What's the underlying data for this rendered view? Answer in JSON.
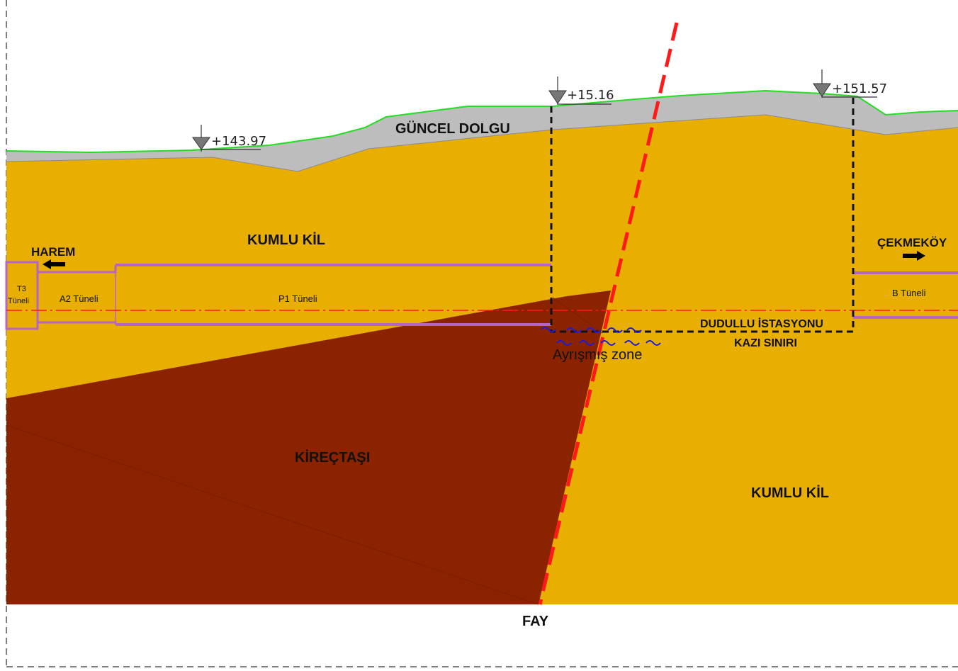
{
  "layers": {
    "fill": "GÜNCEL DOLGU",
    "clay_upper": "KUMLU KİL",
    "clay_right": "KUMLU KİL",
    "limestone": "KİREÇTAŞI"
  },
  "directions": {
    "left": "HAREM",
    "right": "ÇEKMEKÖY"
  },
  "tunnels": {
    "t3_line1": "T3",
    "t3_line2": "Tüneli",
    "a2": "A2 Tüneli",
    "p1": "P1 Tüneli",
    "b": "B Tüneli"
  },
  "station": {
    "line1": "DUDULLU İSTASYONU",
    "line2": "KAZI SINIRI"
  },
  "weathered_zone": "Ayrışmış zone",
  "fault": "FAY",
  "elevations": {
    "left": "+143.97",
    "middle": "+15.16",
    "right": "+151.57"
  },
  "colors": {
    "kumlu_kil": "#E8AE00",
    "kirectasi": "#8B2300",
    "guncel_dolgu": "#BDBDBD",
    "ground_surface": "#22DD22",
    "fault_line": "#FF1A1A",
    "tunnel_axis": "#FF1A1A",
    "tunnel_lining": "#B565C8",
    "excavation_limit": "#111111",
    "water_symbol": "#1A1AE6"
  }
}
